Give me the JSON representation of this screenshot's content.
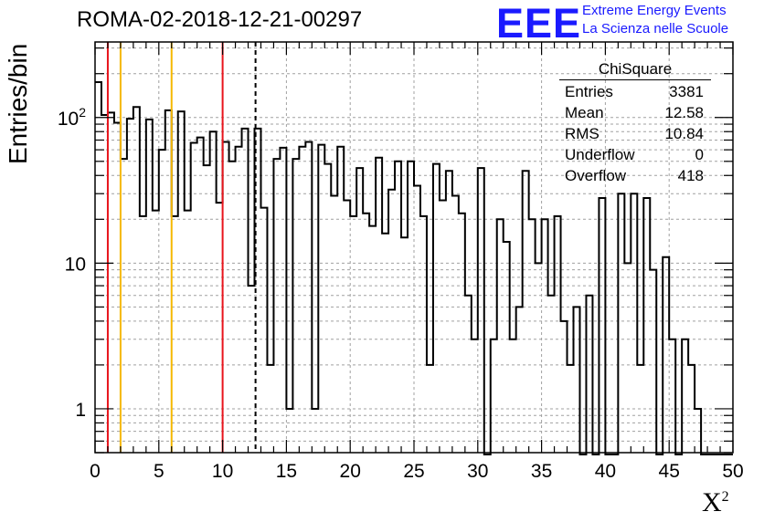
{
  "title": "ROMA-02-2018-12-21-00297",
  "logo": {
    "text": "EEE",
    "line1": "Extreme Energy Events",
    "line2": "La Scienza nelle Scuole",
    "color": "#1a1aff"
  },
  "stats": {
    "title": "ChiSquare",
    "rows": [
      {
        "label": "Entries",
        "value": "3381"
      },
      {
        "label": "Mean",
        "value": "12.58"
      },
      {
        "label": "RMS",
        "value": "10.84"
      },
      {
        "label": "Underflow",
        "value": "0"
      },
      {
        "label": "Overflow",
        "value": "418"
      }
    ]
  },
  "chart_data": {
    "type": "histogram",
    "title": "ROMA-02-2018-12-21-00297",
    "xlabel": "X²",
    "ylabel": "Entries/bin",
    "xlim": [
      0,
      50
    ],
    "ylim": [
      0.5,
      330
    ],
    "log_y": true,
    "grid": true,
    "bin_width": 0.5,
    "x_ticks": [
      0,
      5,
      10,
      15,
      20,
      25,
      30,
      35,
      40,
      45,
      50
    ],
    "y_tick_labels": [
      "1",
      "10",
      "10²"
    ],
    "values": [
      175,
      104,
      108,
      92,
      52,
      98,
      118,
      21,
      97,
      23,
      60,
      112,
      21,
      110,
      23,
      67,
      73,
      47,
      80,
      26,
      68,
      50,
      63,
      84,
      7,
      84,
      24,
      2,
      52,
      62,
      1,
      52,
      63,
      68,
      1,
      65,
      48,
      29,
      63,
      27,
      21,
      45,
      22,
      18,
      53,
      16,
      32,
      50,
      15,
      50,
      34,
      21,
      2,
      48,
      27,
      43,
      29,
      22,
      6,
      3,
      45,
      0,
      3,
      20,
      14,
      3,
      5,
      43,
      20,
      10,
      20,
      6,
      21,
      4,
      2,
      5,
      0,
      6,
      0,
      28,
      0,
      0,
      30,
      10,
      30,
      2,
      28,
      9,
      0,
      11,
      3,
      0,
      3,
      2,
      1,
      0,
      0,
      0,
      0,
      0
    ],
    "vlines": [
      {
        "x": 1,
        "color": "#e8141c",
        "style": "solid"
      },
      {
        "x": 2,
        "color": "#f5b800",
        "style": "solid"
      },
      {
        "x": 6,
        "color": "#f5b800",
        "style": "solid"
      },
      {
        "x": 10,
        "color": "#e8141c",
        "style": "solid"
      },
      {
        "x": 12.58,
        "color": "#000000",
        "style": "dashed"
      }
    ]
  }
}
